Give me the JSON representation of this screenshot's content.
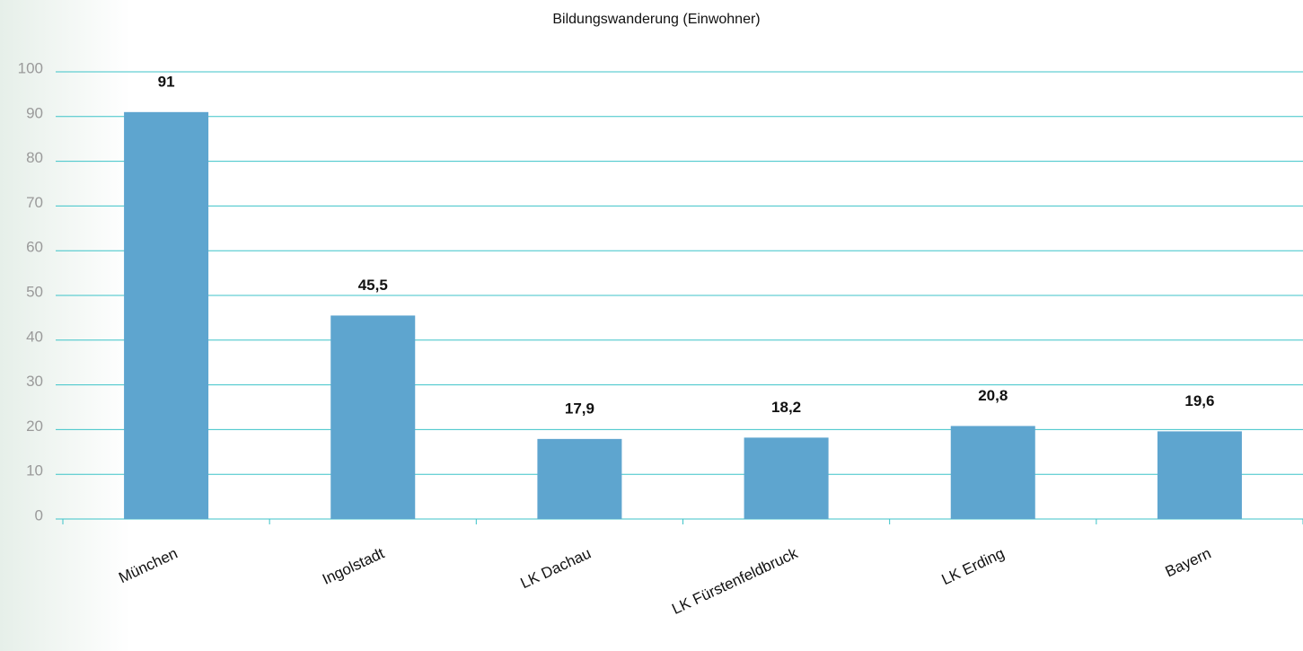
{
  "chart_data": {
    "type": "bar",
    "title": "Bildungswanderung (Einwohner)",
    "categories": [
      "München",
      "Ingolstadt",
      "LK Dachau",
      "LK Fürstenfeldbruck",
      "LK Erding",
      "Bayern"
    ],
    "values": [
      91,
      45.5,
      17.9,
      18.2,
      20.8,
      19.6
    ],
    "value_labels": [
      "91",
      "45,5",
      "17,9",
      "18,2",
      "20,8",
      "19,6"
    ],
    "color": "#5ea5cf",
    "ylim": [
      0,
      100
    ],
    "yticks": [
      0,
      10,
      20,
      30,
      40,
      50,
      60,
      70,
      80,
      90,
      100
    ],
    "grid": true
  }
}
